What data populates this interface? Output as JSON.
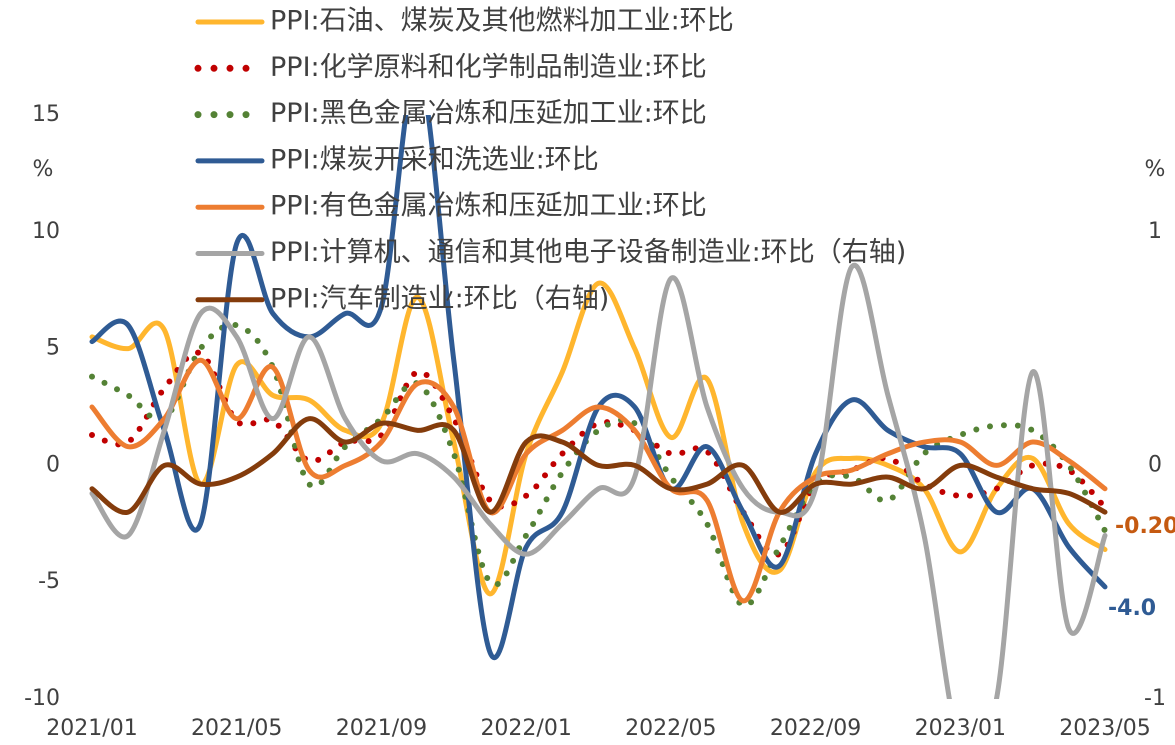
{
  "chart_data": {
    "type": "line",
    "categories": [
      "2021/01",
      null,
      null,
      null,
      "2021/05",
      null,
      null,
      null,
      "2021/09",
      null,
      null,
      null,
      "2022/01",
      null,
      null,
      null,
      "2022/05",
      null,
      null,
      null,
      "2022/09",
      null,
      null,
      null,
      "2023/01",
      null,
      null,
      null,
      "2023/05"
    ],
    "ylim": [
      -10,
      15
    ],
    "yticks": [
      -10,
      -5,
      0,
      5,
      10,
      15
    ],
    "y2lim": [
      -1,
      1.5
    ],
    "y2ticks": [
      -1,
      0,
      1
    ],
    "ylabel": "%",
    "y2label": "%",
    "series": [
      {
        "name": "PPI:石油、煤炭及其他燃料加工业:环比",
        "color": "#ffb62e",
        "style": "solid",
        "values": [
          5.5,
          5.0,
          5.8,
          -0.8,
          4.3,
          3.0,
          2.8,
          1.5,
          1.8,
          7.2,
          1.0,
          -5.5,
          0.5,
          4.0,
          7.8,
          5.0,
          1.2,
          3.7,
          -2.5,
          -4.5,
          -0.3,
          0.3,
          0.0,
          -1.0,
          -3.7,
          -1.0,
          0.3,
          -2.5,
          -3.6
        ]
      },
      {
        "name": "PPI:化学原料和化学制品制造业:环比",
        "color": "#c00000",
        "style": "dotted",
        "values": [
          1.3,
          1.0,
          3.3,
          4.8,
          1.9,
          1.9,
          0.2,
          1.0,
          1.3,
          4.0,
          2.0,
          -1.5,
          -1.3,
          0.5,
          1.8,
          1.5,
          0.5,
          0.6,
          -2.0,
          -3.8,
          -0.8,
          -0.2,
          0.3,
          -0.8,
          -1.3,
          -1.0,
          0.0,
          -0.2,
          -1.8
        ]
      },
      {
        "name": "PPI:黑色金属冶炼和压延加工业:环比",
        "color": "#548235",
        "style": "dotted",
        "values": [
          3.8,
          3.0,
          2.0,
          5.0,
          6.0,
          4.2,
          -0.8,
          0.8,
          2.0,
          3.5,
          0.5,
          -5.0,
          -3.0,
          -0.3,
          1.5,
          1.8,
          -0.5,
          -2.5,
          -6.0,
          -3.5,
          -0.8,
          -0.5,
          -1.5,
          0.5,
          1.3,
          1.7,
          1.5,
          0.0,
          -2.8
        ]
      },
      {
        "name": "PPI:煤炭开采和洗选业:环比",
        "color": "#2f5b94",
        "style": "solid",
        "values": [
          5.3,
          6.0,
          1.5,
          -2.5,
          9.5,
          6.5,
          5.5,
          6.5,
          6.8,
          17.0,
          4.5,
          -8.0,
          -3.5,
          -2.0,
          2.5,
          2.5,
          -1.0,
          0.8,
          -2.0,
          -4.3,
          0.5,
          2.8,
          1.5,
          0.8,
          0.5,
          -2.0,
          -1.0,
          -3.5,
          -5.2
        ]
      },
      {
        "name": "PPI:有色金属冶炼和压延加工业:环比",
        "color": "#ed7d31",
        "style": "solid",
        "values": [
          2.5,
          0.8,
          2.0,
          4.5,
          2.0,
          4.2,
          -0.2,
          0.0,
          1.0,
          3.5,
          2.5,
          -2.0,
          0.5,
          1.5,
          2.5,
          1.5,
          -1.0,
          -1.5,
          -5.8,
          -2.0,
          -0.5,
          -0.2,
          0.5,
          1.0,
          1.0,
          0.0,
          1.0,
          0.2,
          -1.0
        ]
      },
      {
        "name": "PPI:计算机、通信和其他电子设备制造业:环比（右轴)",
        "color": "#a5a5a5",
        "style": "solid",
        "axis": "y2",
        "values": [
          -0.12,
          -0.3,
          0.15,
          0.65,
          0.55,
          0.2,
          0.55,
          0.2,
          0.02,
          0.05,
          -0.05,
          -0.25,
          -0.38,
          -0.25,
          -0.1,
          -0.05,
          0.8,
          0.25,
          -0.1,
          -0.2,
          -0.1,
          0.85,
          0.3,
          -0.3,
          -1.2,
          -1.0,
          0.4,
          -0.7,
          -0.3
        ]
      },
      {
        "name": "PPI:汽车制造业:环比（右轴)",
        "color": "#843c0c",
        "style": "solid",
        "axis": "y2",
        "values": [
          -0.1,
          -0.2,
          0.0,
          -0.08,
          -0.05,
          0.05,
          0.2,
          0.1,
          0.18,
          0.15,
          0.15,
          -0.2,
          0.1,
          0.1,
          0.0,
          0.0,
          -0.1,
          -0.08,
          0.0,
          -0.2,
          -0.08,
          -0.08,
          -0.05,
          -0.1,
          0.0,
          -0.05,
          -0.1,
          -0.12,
          -0.2
        ]
      }
    ],
    "annotations": [
      "-0.20",
      "-4.0"
    ]
  }
}
